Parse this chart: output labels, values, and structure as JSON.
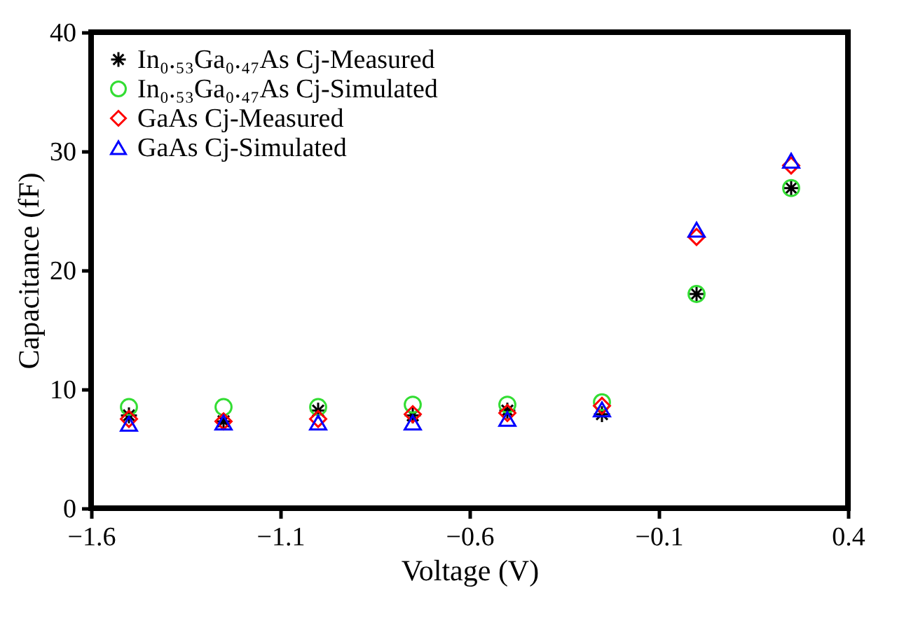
{
  "chart_data": {
    "type": "scatter",
    "xlabel": "Voltage (V)",
    "ylabel": "Capacitance (fF)",
    "x": [
      -1.5,
      -1.25,
      -1.0,
      -0.75,
      -0.5,
      -0.25,
      0.0,
      0.25
    ],
    "series": [
      {
        "name": "In₀.₅₃Ga₀.₄₇As Cj-Measured",
        "color": "#000000",
        "marker": "cross",
        "values": [
          7.8,
          7.3,
          8.2,
          7.8,
          8.2,
          7.9,
          18.0,
          26.9
        ]
      },
      {
        "name": "In₀.₅₃Ga₀.₄₇As Cj-Simulated",
        "color": "#33dd33",
        "marker": "circle",
        "values": [
          8.5,
          8.5,
          8.5,
          8.7,
          8.7,
          8.9,
          18.0,
          26.9
        ]
      },
      {
        "name": "GaAs Cj-Measured",
        "color": "#ff0000",
        "marker": "diamond",
        "values": [
          7.5,
          7.3,
          7.5,
          7.9,
          8.0,
          8.6,
          22.8,
          28.8
        ]
      },
      {
        "name": "GaAs Cj-Simulated",
        "color": "#0000ff",
        "marker": "triangle",
        "values": [
          7.1,
          7.2,
          7.2,
          7.2,
          7.5,
          8.3,
          23.4,
          29.2
        ]
      }
    ],
    "xlim": [
      -1.6,
      0.4
    ],
    "xticks": [
      -1.6,
      -1.1,
      -0.6,
      -0.1,
      0.4
    ],
    "ylim": [
      0,
      40
    ],
    "yticks": [
      0,
      10,
      20,
      30,
      40
    ],
    "grid": false,
    "legend": "top left"
  }
}
